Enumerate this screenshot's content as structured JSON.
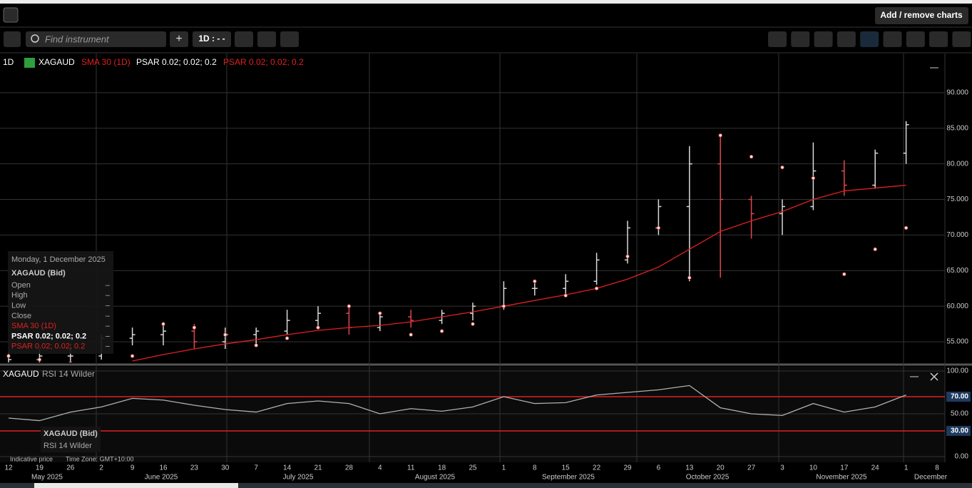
{
  "toolbar": {
    "button": "Add / remove charts",
    "search_placeholder": "Find instrument",
    "interval": "1D : - -"
  },
  "header": {
    "interval": "1D",
    "extra": "PSAR 0.02; 0.02; 0.2"
  },
  "tooltip": {
    "date": "Monday, 1 December 2025",
    "instrument": "XAGAUD (Bid)",
    "rows": [
      [
        "Open",
        "–"
      ],
      [
        "High",
        "–"
      ],
      [
        "Low",
        "–"
      ],
      [
        "Close",
        "–"
      ],
      [
        "SMA 30 (1D)",
        "–"
      ],
      [
        "PSAR 0.02; 0.02; 0.2",
        "–"
      ],
      [
        "PSAR 0.02; 0.02; 0.2",
        "–"
      ]
    ]
  },
  "rsi_tooltip": {
    "instrument": "XAGAUD (Bid)",
    "name": "RSI 14 Wilder"
  },
  "footer": {
    "indicative": "Indicative price",
    "timezone": "Time Zone: GMT+10:00"
  },
  "chart_data": [
    {
      "type": "ohlc",
      "categories": [
        "12",
        "19",
        "26",
        "2",
        "9",
        "16",
        "23",
        "30",
        "7",
        "14",
        "21",
        "28",
        "4",
        "11",
        "18",
        "25",
        "1",
        "8",
        "15",
        "22",
        "29",
        "6",
        "13",
        "20",
        "27",
        "3",
        "10",
        "17",
        "24",
        "1",
        "8"
      ],
      "months": [
        "May 2025",
        "June 2025",
        "July 2025",
        "August 2025",
        "September 2025",
        "October 2025",
        "November 2025",
        "December"
      ],
      "series": [
        {
          "name": "XAGAUD",
          "up_color": "#d9d9d9",
          "down_color": "#e0474c",
          "open": [
            52,
            52.5,
            53,
            53,
            55.5,
            56,
            56.5,
            55,
            56,
            56.5,
            58,
            59,
            57,
            58.5,
            58,
            59,
            60,
            62.5,
            62.5,
            63.5,
            66.5,
            71,
            74,
            80,
            75,
            73,
            74,
            79,
            77,
            81.5,
            null
          ],
          "high": [
            53.5,
            54,
            54.5,
            56,
            57,
            57.5,
            57.5,
            57,
            57,
            59.5,
            60,
            60,
            59,
            59.5,
            59.5,
            60.5,
            63.5,
            63.5,
            64.5,
            67.5,
            72,
            75,
            82.5,
            84,
            75.5,
            75,
            83,
            80.5,
            82,
            86,
            null
          ],
          "low": [
            51,
            52,
            52,
            52.5,
            54.5,
            54.5,
            54,
            54,
            54.5,
            56,
            57,
            56,
            56.5,
            57,
            57.5,
            58,
            59.5,
            61.5,
            61.5,
            63,
            66,
            70,
            63.5,
            64,
            69.5,
            70,
            73.5,
            75.5,
            76.5,
            80,
            null
          ],
          "close": [
            52.5,
            53,
            53,
            55.5,
            56,
            56.5,
            55,
            56,
            56.5,
            58,
            59,
            57,
            58.5,
            58,
            59,
            60,
            62.5,
            62.5,
            63.5,
            66.5,
            71,
            74,
            80,
            75,
            73,
            74,
            79,
            77,
            81.5,
            85.5,
            null
          ]
        },
        {
          "name": "SMA 30 (1D)",
          "color": "#e02020",
          "values": [
            null,
            null,
            null,
            null,
            52.3,
            53.2,
            54,
            54.7,
            55.3,
            56,
            56.6,
            57,
            57.3,
            57.8,
            58.5,
            59.2,
            60,
            60.8,
            61.6,
            62.5,
            63.8,
            65.5,
            68,
            70.5,
            72,
            73.3,
            75,
            76.2,
            76.6,
            77,
            null
          ]
        },
        {
          "name": "PSAR 0.02; 0.02; 0.2",
          "color": "#f4dede",
          "stroke": "#c03030",
          "values": [
            53,
            52.5,
            52,
            51.8,
            53,
            57.5,
            57,
            56,
            54.5,
            55.5,
            57,
            60,
            59,
            56,
            56.5,
            57.5,
            60,
            63.5,
            61.5,
            62.5,
            67,
            71,
            64,
            84,
            81,
            79.5,
            78,
            64.5,
            68,
            71,
            null
          ]
        }
      ],
      "ylim": [
        52.1,
        95.5
      ],
      "yticks": [
        {
          "value": 55,
          "label": "55.000"
        },
        {
          "value": 60,
          "label": "60.000"
        },
        {
          "value": 65,
          "label": "65.000"
        },
        {
          "value": 70,
          "label": "70.000"
        },
        {
          "value": 75,
          "label": "75.000"
        },
        {
          "value": 80,
          "label": "80.000"
        },
        {
          "value": 85,
          "label": "85.000"
        },
        {
          "value": 90,
          "label": "90.000"
        }
      ],
      "grid": true
    },
    {
      "type": "line",
      "title": "XAGAUD",
      "series": [
        {
          "name": "RSI 14 Wilder",
          "color": "#b0b0b0",
          "values": [
            45,
            42,
            52,
            58,
            68,
            66,
            60,
            55,
            52,
            62,
            65,
            62,
            50,
            56,
            53,
            58,
            70,
            62,
            63,
            72,
            75,
            78,
            83,
            57,
            50,
            48,
            62,
            52,
            58,
            72,
            null
          ]
        }
      ],
      "levels": [
        70,
        30
      ],
      "level_color": "#e02020",
      "ylim": [
        -6.7,
        105
      ],
      "yticks": [
        {
          "value": 0,
          "label": "0.00"
        },
        {
          "value": 30,
          "label": "30.00"
        },
        {
          "value": 50,
          "label": "50.00"
        },
        {
          "value": 70,
          "label": "70.00"
        },
        {
          "value": 100,
          "label": "100.00"
        }
      ],
      "grid": true
    }
  ]
}
